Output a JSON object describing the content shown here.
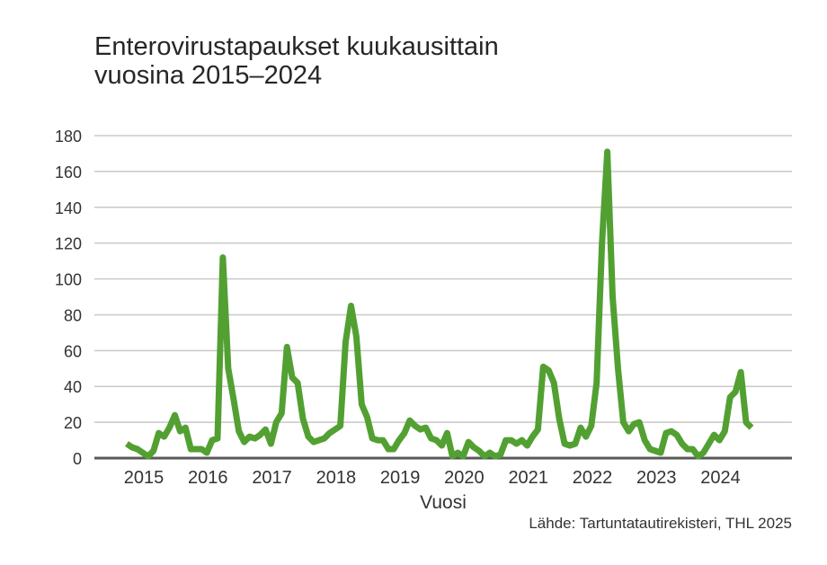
{
  "title_line1": "Enterovirustapaukset kuukausittain",
  "title_line2": "vuosina 2015–2024",
  "source": "Lähde: Tartuntatautirekisteri, THL 2025",
  "colors": {
    "line": "#52a032",
    "grid": "#c8c8c8",
    "axis": "#595959"
  },
  "chart_data": {
    "type": "line",
    "title": "Enterovirustapaukset kuukausittain vuosina 2015–2024",
    "xlabel": "Vuosi",
    "ylabel": "",
    "ylim": [
      0,
      180
    ],
    "yticks": [
      0,
      20,
      40,
      60,
      80,
      100,
      120,
      140,
      160,
      180
    ],
    "xticks": [
      "2015",
      "2016",
      "2017",
      "2018",
      "2019",
      "2020",
      "2021",
      "2022",
      "2023",
      "2024"
    ],
    "grid": true,
    "legend": "none",
    "x_start": "2015-01",
    "x_unit": "month",
    "series": [
      {
        "name": "Enterovirustapaukset",
        "values": [
          8,
          6,
          5,
          3,
          1,
          4,
          14,
          12,
          17,
          24,
          15,
          17,
          5,
          5,
          5,
          3,
          10,
          11,
          112,
          50,
          33,
          15,
          9,
          12,
          11,
          13,
          16,
          8,
          20,
          25,
          62,
          45,
          42,
          22,
          12,
          9,
          10,
          11,
          14,
          16,
          18,
          65,
          85,
          68,
          30,
          23,
          11,
          10,
          10,
          5,
          5,
          10,
          14,
          21,
          18,
          16,
          17,
          11,
          10,
          7,
          14,
          1,
          3,
          1,
          9,
          6,
          4,
          1,
          3,
          1,
          2,
          10,
          10,
          8,
          10,
          7,
          12,
          16,
          51,
          49,
          42,
          22,
          8,
          7,
          8,
          17,
          12,
          18,
          42,
          120,
          171,
          90,
          50,
          20,
          15,
          19,
          20,
          10,
          5,
          4,
          3,
          14,
          15,
          13,
          8,
          5,
          5,
          1,
          3,
          8,
          13,
          10,
          15,
          34,
          37,
          48,
          20,
          17
        ]
      }
    ]
  }
}
